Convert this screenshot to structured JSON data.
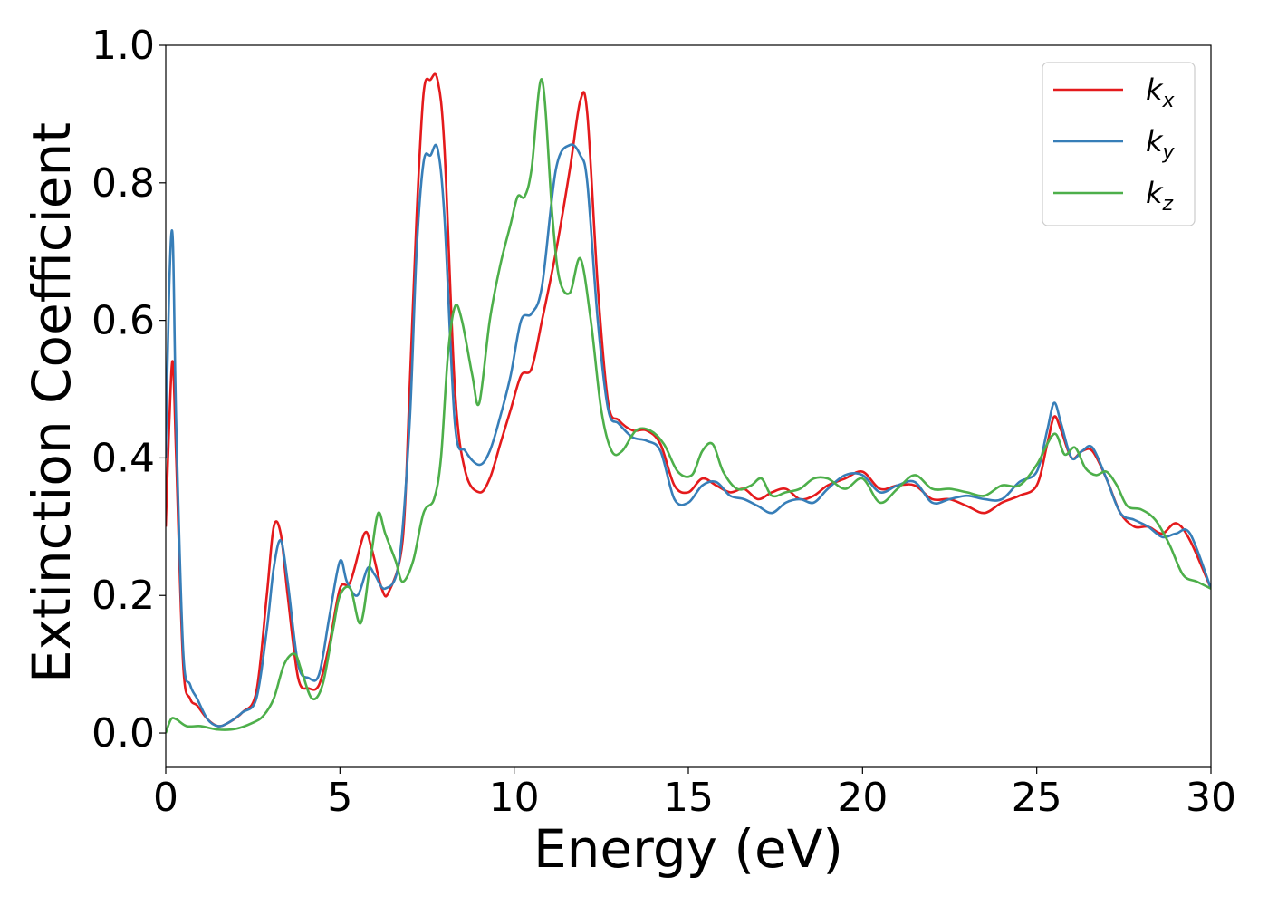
{
  "chart_data": {
    "type": "line",
    "xlabel": "Energy (eV)",
    "ylabel": "Extinction Coefficient",
    "xlim": [
      0,
      30
    ],
    "ylim": [
      -0.05,
      1.0
    ],
    "xticks": [
      0,
      5,
      10,
      15,
      20,
      25,
      30
    ],
    "xtick_labels": [
      "0",
      "5",
      "10",
      "15",
      "20",
      "25",
      "30"
    ],
    "yticks": [
      0.0,
      0.2,
      0.4,
      0.6,
      0.8,
      1.0
    ],
    "ytick_labels": [
      "0.0",
      "0.2",
      "0.4",
      "0.6",
      "0.8",
      "1.0"
    ],
    "grid": false,
    "legend_position": "top-right",
    "series": [
      {
        "name": "k",
        "subscript": "x",
        "color": "#e41a1c",
        "x": [
          0,
          0.1,
          0.2,
          0.3,
          0.5,
          0.7,
          0.9,
          1.2,
          1.5,
          1.8,
          2.2,
          2.6,
          2.9,
          3.1,
          3.3,
          3.5,
          3.8,
          4.1,
          4.4,
          4.7,
          5.0,
          5.3,
          5.7,
          5.9,
          6.2,
          6.4,
          6.8,
          7.0,
          7.2,
          7.4,
          7.6,
          7.8,
          8.0,
          8.3,
          8.6,
          9.0,
          9.3,
          9.6,
          9.9,
          10.2,
          10.5,
          10.8,
          11.2,
          11.6,
          11.9,
          12.1,
          12.4,
          12.7,
          13.0,
          13.4,
          13.8,
          14.2,
          14.6,
          15.0,
          15.4,
          15.8,
          16.2,
          16.6,
          17.0,
          17.4,
          17.8,
          18.2,
          18.6,
          19.0,
          19.5,
          20.0,
          20.5,
          21.0,
          21.5,
          22.0,
          22.5,
          23.0,
          23.5,
          24.0,
          24.5,
          25.0,
          25.3,
          25.5,
          25.7,
          26.0,
          26.3,
          26.6,
          27.0,
          27.4,
          27.8,
          28.2,
          28.6,
          29.0,
          29.4,
          30.0
        ],
        "y": [
          0.3,
          0.45,
          0.54,
          0.4,
          0.1,
          0.05,
          0.04,
          0.02,
          0.01,
          0.015,
          0.03,
          0.06,
          0.2,
          0.3,
          0.29,
          0.2,
          0.08,
          0.065,
          0.07,
          0.13,
          0.21,
          0.22,
          0.29,
          0.27,
          0.21,
          0.205,
          0.28,
          0.5,
          0.75,
          0.93,
          0.95,
          0.95,
          0.85,
          0.5,
          0.38,
          0.35,
          0.37,
          0.42,
          0.47,
          0.52,
          0.53,
          0.6,
          0.7,
          0.82,
          0.92,
          0.9,
          0.65,
          0.48,
          0.455,
          0.44,
          0.44,
          0.42,
          0.36,
          0.35,
          0.37,
          0.36,
          0.35,
          0.355,
          0.34,
          0.35,
          0.355,
          0.34,
          0.345,
          0.36,
          0.37,
          0.38,
          0.355,
          0.36,
          0.36,
          0.34,
          0.34,
          0.33,
          0.32,
          0.335,
          0.345,
          0.36,
          0.42,
          0.46,
          0.44,
          0.4,
          0.41,
          0.41,
          0.37,
          0.32,
          0.3,
          0.3,
          0.29,
          0.305,
          0.28,
          0.21
        ]
      },
      {
        "name": "k",
        "subscript": "y",
        "color": "#377eb8",
        "x": [
          0,
          0.1,
          0.2,
          0.3,
          0.5,
          0.7,
          0.9,
          1.2,
          1.5,
          1.8,
          2.2,
          2.6,
          2.9,
          3.1,
          3.3,
          3.5,
          3.8,
          4.1,
          4.4,
          4.7,
          5.0,
          5.2,
          5.5,
          5.8,
          6.0,
          6.3,
          6.7,
          7.0,
          7.2,
          7.4,
          7.6,
          7.8,
          8.0,
          8.3,
          8.6,
          9.0,
          9.3,
          9.6,
          9.9,
          10.2,
          10.5,
          10.8,
          11.2,
          11.6,
          11.9,
          12.1,
          12.4,
          12.7,
          13.0,
          13.4,
          13.8,
          14.2,
          14.6,
          15.0,
          15.4,
          15.8,
          16.2,
          16.6,
          17.0,
          17.4,
          17.8,
          18.2,
          18.6,
          19.0,
          19.5,
          20.0,
          20.5,
          21.0,
          21.5,
          22.0,
          22.5,
          23.0,
          23.5,
          24.0,
          24.5,
          25.0,
          25.3,
          25.5,
          25.7,
          26.0,
          26.3,
          26.6,
          27.0,
          27.4,
          27.8,
          28.2,
          28.6,
          29.0,
          29.4,
          30.0
        ],
        "y": [
          0.4,
          0.65,
          0.72,
          0.45,
          0.12,
          0.07,
          0.05,
          0.02,
          0.01,
          0.015,
          0.03,
          0.05,
          0.15,
          0.24,
          0.28,
          0.22,
          0.1,
          0.08,
          0.085,
          0.17,
          0.25,
          0.22,
          0.2,
          0.24,
          0.23,
          0.21,
          0.25,
          0.45,
          0.7,
          0.83,
          0.84,
          0.85,
          0.75,
          0.45,
          0.41,
          0.39,
          0.41,
          0.46,
          0.52,
          0.6,
          0.61,
          0.65,
          0.82,
          0.855,
          0.84,
          0.8,
          0.6,
          0.47,
          0.45,
          0.43,
          0.425,
          0.41,
          0.34,
          0.335,
          0.36,
          0.365,
          0.345,
          0.34,
          0.33,
          0.32,
          0.335,
          0.34,
          0.335,
          0.355,
          0.375,
          0.375,
          0.35,
          0.36,
          0.365,
          0.335,
          0.34,
          0.345,
          0.34,
          0.34,
          0.365,
          0.38,
          0.44,
          0.48,
          0.45,
          0.4,
          0.41,
          0.415,
          0.37,
          0.32,
          0.31,
          0.3,
          0.285,
          0.29,
          0.29,
          0.21
        ]
      },
      {
        "name": "k",
        "subscript": "z",
        "color": "#4daf4a",
        "x": [
          0,
          0.15,
          0.3,
          0.6,
          1.0,
          1.5,
          2.0,
          2.5,
          2.8,
          3.1,
          3.4,
          3.7,
          3.9,
          4.2,
          4.5,
          4.8,
          5.0,
          5.3,
          5.6,
          5.9,
          6.1,
          6.3,
          6.6,
          6.8,
          7.1,
          7.4,
          7.7,
          7.9,
          8.1,
          8.3,
          8.5,
          8.8,
          9.0,
          9.3,
          9.6,
          9.9,
          10.1,
          10.3,
          10.5,
          10.8,
          11.1,
          11.3,
          11.6,
          11.9,
          12.2,
          12.5,
          12.8,
          13.1,
          13.5,
          13.9,
          14.3,
          14.7,
          15.1,
          15.4,
          15.7,
          16.0,
          16.4,
          16.8,
          17.1,
          17.4,
          17.8,
          18.2,
          18.6,
          19.0,
          19.5,
          20.0,
          20.5,
          21.0,
          21.5,
          22.0,
          22.5,
          23.0,
          23.5,
          24.0,
          24.5,
          25.0,
          25.5,
          25.8,
          26.1,
          26.4,
          26.7,
          27.0,
          27.3,
          27.6,
          28.0,
          28.4,
          28.8,
          29.2,
          29.6,
          30.0
        ],
        "y": [
          0.0,
          0.02,
          0.02,
          0.01,
          0.01,
          0.005,
          0.006,
          0.015,
          0.025,
          0.05,
          0.1,
          0.115,
          0.09,
          0.05,
          0.07,
          0.15,
          0.2,
          0.21,
          0.16,
          0.26,
          0.32,
          0.29,
          0.25,
          0.22,
          0.25,
          0.32,
          0.34,
          0.4,
          0.55,
          0.62,
          0.6,
          0.52,
          0.48,
          0.6,
          0.68,
          0.74,
          0.78,
          0.78,
          0.82,
          0.95,
          0.75,
          0.66,
          0.64,
          0.69,
          0.6,
          0.47,
          0.41,
          0.41,
          0.44,
          0.44,
          0.42,
          0.38,
          0.375,
          0.41,
          0.42,
          0.38,
          0.355,
          0.36,
          0.37,
          0.345,
          0.35,
          0.355,
          0.37,
          0.37,
          0.355,
          0.37,
          0.335,
          0.355,
          0.375,
          0.355,
          0.355,
          0.35,
          0.345,
          0.36,
          0.36,
          0.39,
          0.435,
          0.405,
          0.415,
          0.385,
          0.375,
          0.38,
          0.36,
          0.33,
          0.325,
          0.31,
          0.275,
          0.23,
          0.22,
          0.21
        ]
      }
    ]
  }
}
